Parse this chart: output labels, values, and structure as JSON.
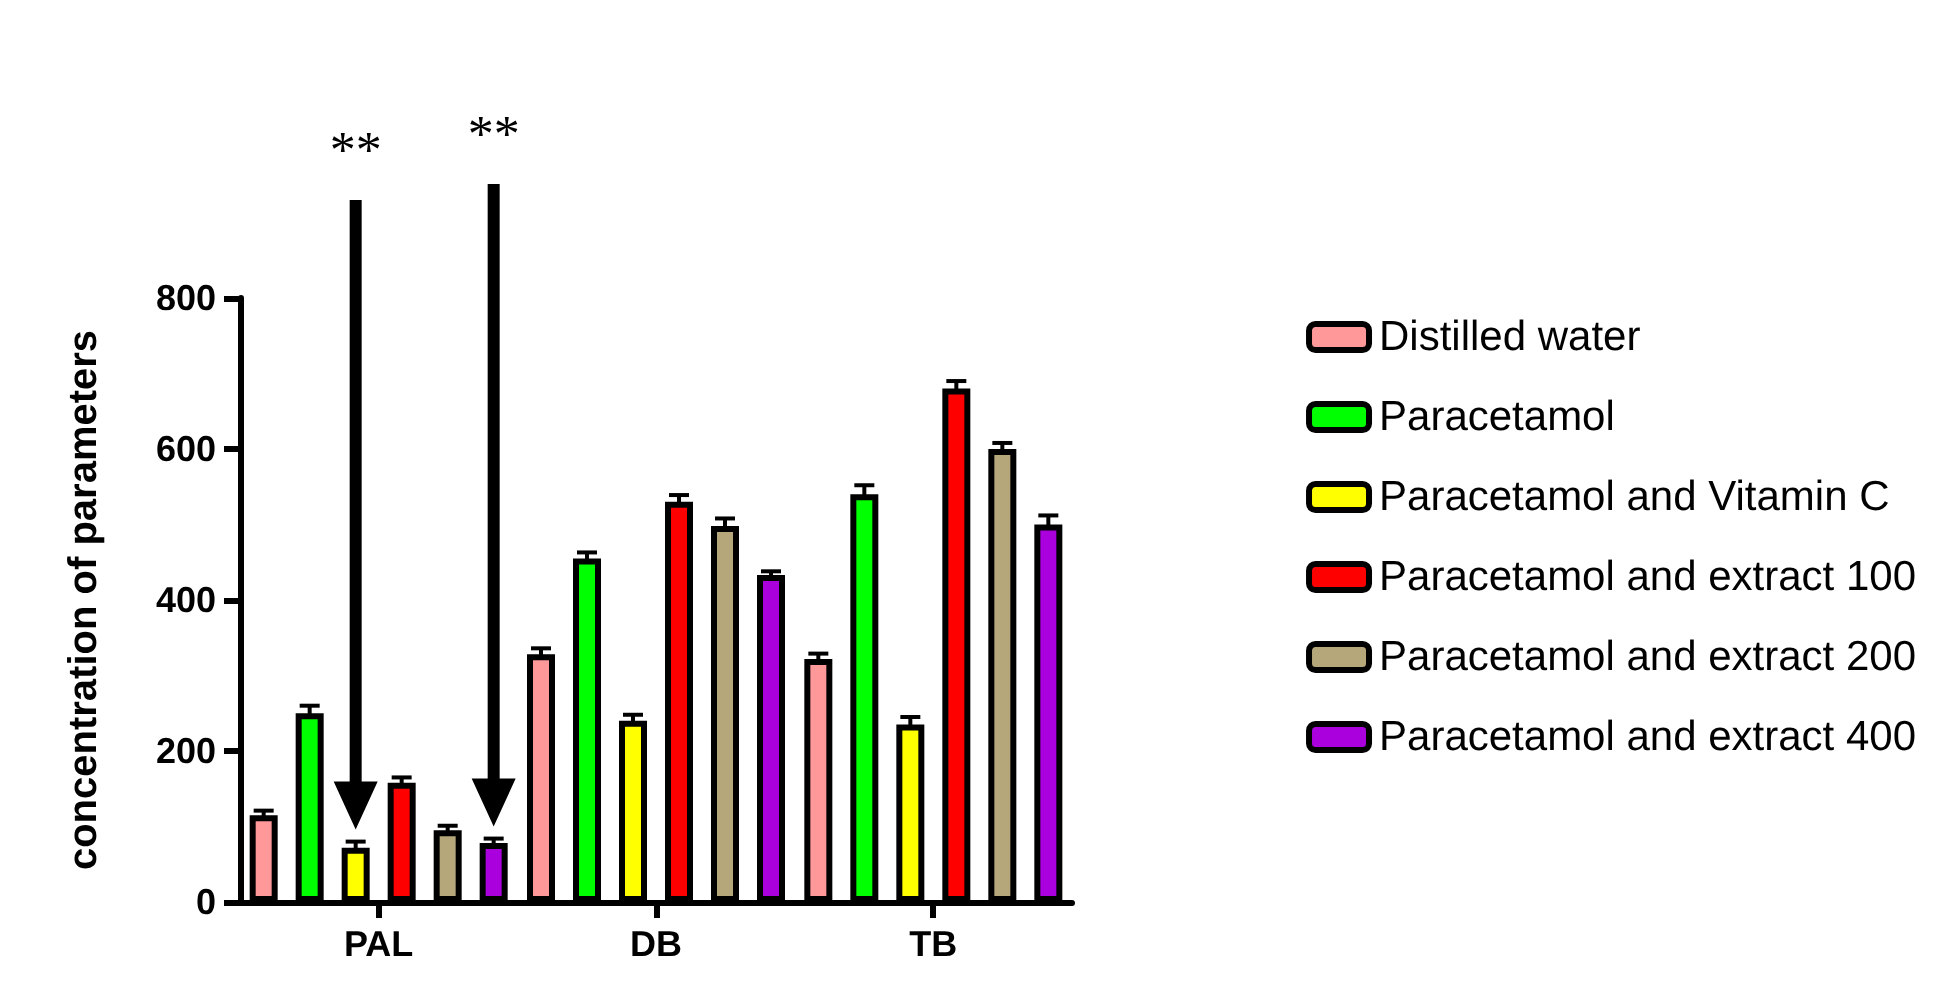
{
  "chart_data": {
    "type": "bar",
    "ylabel": "concentration of parameters",
    "categories": [
      "PAL",
      "DB",
      "TB"
    ],
    "series": [
      {
        "name": "Distilled water",
        "color": "#ff9999",
        "values": [
          115,
          328,
          322
        ],
        "errors": [
          6,
          8,
          7
        ]
      },
      {
        "name": "Paracetamol",
        "color": "#00ff00",
        "values": [
          250,
          455,
          540
        ],
        "errors": [
          10,
          8,
          12
        ]
      },
      {
        "name": "Paracetamol and Vitamin C",
        "color": "#ffff00",
        "values": [
          72,
          240,
          235
        ],
        "errors": [
          8,
          8,
          10
        ]
      },
      {
        "name": "Paracetamol and extract 100",
        "color": "#ff0000",
        "values": [
          158,
          530,
          680
        ],
        "errors": [
          7,
          9,
          10
        ]
      },
      {
        "name": "Paracetamol and extract 200",
        "color": "#b5a77a",
        "values": [
          95,
          498,
          600
        ],
        "errors": [
          6,
          10,
          8
        ]
      },
      {
        "name": "Paracetamol and extract 400",
        "color": "#aa00dd",
        "values": [
          78,
          433,
          500
        ],
        "errors": [
          6,
          5,
          12
        ]
      }
    ],
    "ylim": [
      0,
      800
    ],
    "yticks": [
      0,
      200,
      400,
      600,
      800
    ],
    "grid": false,
    "legend": "right",
    "annotations": [
      "**",
      "**"
    ]
  }
}
